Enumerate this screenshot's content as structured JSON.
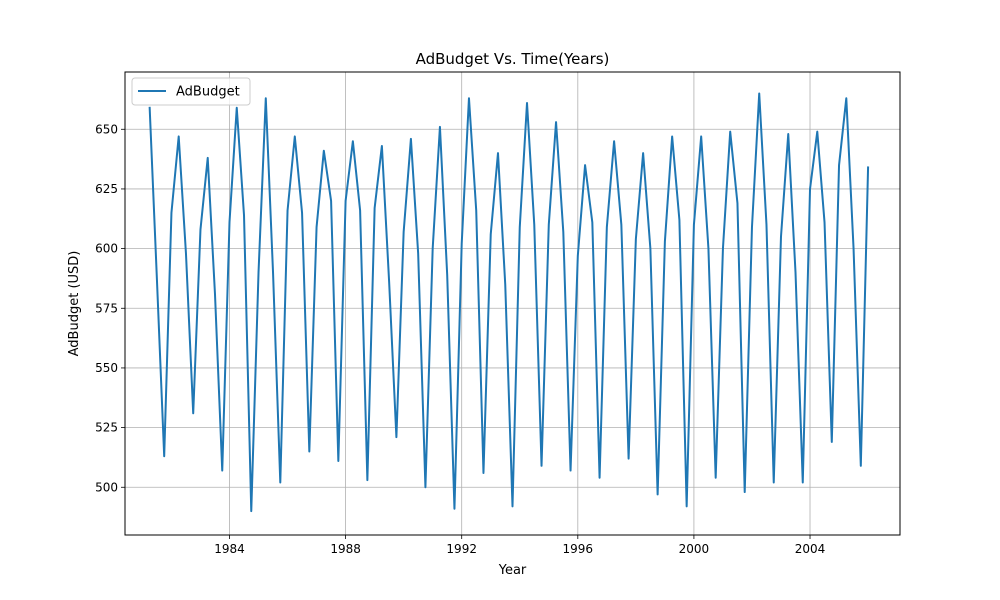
{
  "chart_data": {
    "type": "line",
    "title": "AdBudget Vs. Time(Years)",
    "xlabel": "Year",
    "ylabel": "AdBudget (USD)",
    "xlim": [
      1980.4,
      2007.1
    ],
    "ylim": [
      480,
      674
    ],
    "x_ticks": [
      1984,
      1988,
      1992,
      1996,
      2000,
      2004
    ],
    "y_ticks": [
      500,
      525,
      550,
      575,
      600,
      625,
      650
    ],
    "grid": true,
    "legend_position": "top-left",
    "series": [
      {
        "name": "AdBudget",
        "color": "#1f77b4",
        "x": [
          1981.25,
          1981.5,
          1981.75,
          1982.0,
          1982.25,
          1982.5,
          1982.75,
          1983.0,
          1983.25,
          1983.5,
          1983.75,
          1984.0,
          1984.25,
          1984.5,
          1984.75,
          1985.0,
          1985.25,
          1985.5,
          1985.75,
          1986.0,
          1986.25,
          1986.5,
          1986.75,
          1987.0,
          1987.25,
          1987.5,
          1987.75,
          1988.0,
          1988.25,
          1988.5,
          1988.75,
          1989.0,
          1989.25,
          1989.5,
          1989.75,
          1990.0,
          1990.25,
          1990.5,
          1990.75,
          1991.0,
          1991.25,
          1991.5,
          1991.75,
          1992.0,
          1992.25,
          1992.5,
          1992.75,
          1993.0,
          1993.25,
          1993.5,
          1993.75,
          1994.0,
          1994.25,
          1994.5,
          1994.75,
          1995.0,
          1995.25,
          1995.5,
          1995.75,
          1996.0,
          1996.25,
          1996.5,
          1996.75,
          1997.0,
          1997.25,
          1997.5,
          1997.75,
          1998.0,
          1998.25,
          1998.5,
          1998.75,
          1999.0,
          1999.25,
          1999.5,
          1999.75,
          2000.0,
          2000.25,
          2000.5,
          2000.75,
          2001.0,
          2001.25,
          2001.5,
          2001.75,
          2002.0,
          2002.25,
          2002.5,
          2002.75,
          2003.0,
          2003.25,
          2003.5,
          2003.75,
          2004.0,
          2004.25,
          2004.5,
          2004.75,
          2005.0,
          2005.25,
          2005.5,
          2005.75,
          2006.0
        ],
        "values": [
          659,
          587,
          513,
          615,
          647,
          598,
          531,
          608,
          638,
          581,
          507,
          611,
          659,
          614,
          490,
          590,
          663,
          590,
          502,
          616,
          647,
          615,
          515,
          609,
          641,
          620,
          511,
          620,
          645,
          616,
          503,
          617,
          643,
          586,
          521,
          607,
          646,
          598,
          500,
          600,
          651,
          589,
          491,
          602,
          663,
          616,
          506,
          606,
          640,
          585,
          492,
          609,
          661,
          610,
          509,
          610,
          653,
          607,
          507,
          597,
          635,
          611,
          504,
          609,
          645,
          610,
          512,
          604,
          640,
          600,
          497,
          603,
          647,
          612,
          492,
          610,
          647,
          600,
          504,
          600,
          649,
          619,
          498,
          609,
          665,
          610,
          502,
          605,
          648,
          590,
          502,
          625,
          649,
          611,
          519,
          635,
          663,
          600,
          509,
          634
        ]
      }
    ]
  }
}
